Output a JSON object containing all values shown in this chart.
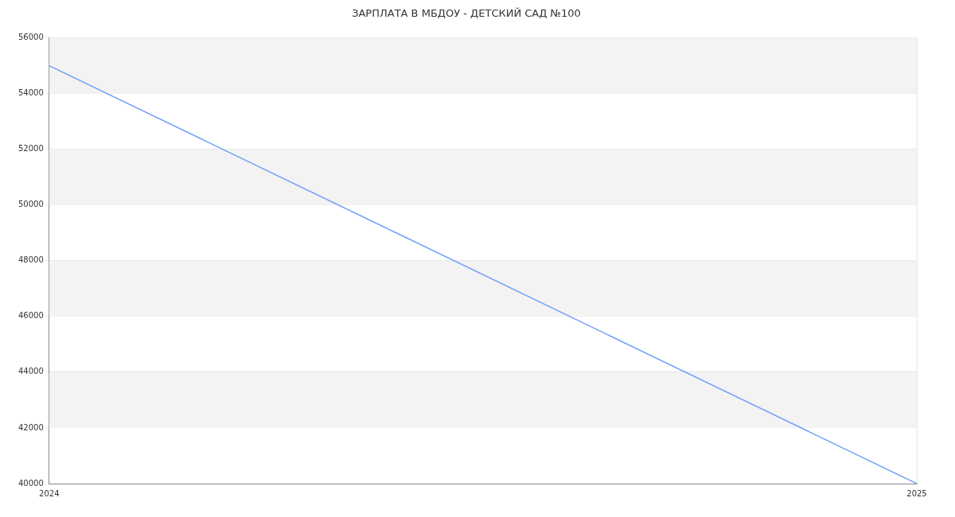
{
  "chart_data": {
    "type": "line",
    "title": "ЗАРПЛАТА В МБДОУ - ДЕТСКИЙ САД №100",
    "x": [
      2024,
      2025
    ],
    "series": [
      {
        "color": "#6f9ef8",
        "values": [
          55000,
          40000
        ]
      }
    ],
    "xlim": [
      2024,
      2025
    ],
    "xticks": [
      2024,
      2025
    ],
    "ylim": [
      40000,
      56000
    ],
    "yticks": [
      40000,
      42000,
      44000,
      46000,
      48000,
      50000,
      52000,
      54000,
      56000
    ],
    "grid": "y",
    "legend": false,
    "marker": "none",
    "line_style": "solid",
    "bands": [
      {
        "axis": "y",
        "from": 54000,
        "to": 56000,
        "color": "#f3f3f3"
      },
      {
        "axis": "y",
        "from": 50000,
        "to": 52000,
        "color": "#f3f3f3"
      },
      {
        "axis": "y",
        "from": 46000,
        "to": 48000,
        "color": "#f3f3f3"
      },
      {
        "axis": "y",
        "from": 42000,
        "to": 44000,
        "color": "#f3f3f3"
      }
    ]
  }
}
